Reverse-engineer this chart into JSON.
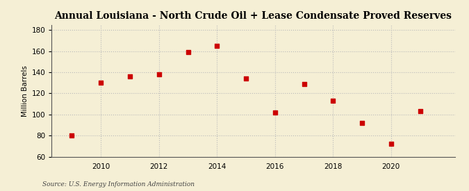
{
  "title": "Annual Louisiana - North Crude Oil + Lease Condensate Proved Reserves",
  "ylabel": "Million Barrels",
  "source": "Source: U.S. Energy Information Administration",
  "years": [
    2009,
    2010,
    2011,
    2012,
    2013,
    2014,
    2015,
    2016,
    2017,
    2018,
    2019,
    2020,
    2021
  ],
  "values": [
    80,
    130,
    136,
    138,
    159,
    165,
    134,
    102,
    129,
    113,
    92,
    72,
    103
  ],
  "xlim": [
    2008.3,
    2022.2
  ],
  "ylim": [
    60,
    185
  ],
  "yticks": [
    60,
    80,
    100,
    120,
    140,
    160,
    180
  ],
  "xticks": [
    2010,
    2012,
    2014,
    2016,
    2018,
    2020
  ],
  "background_color": "#f5efd5",
  "plot_bg_color": "#f5efd5",
  "marker_color": "#cc0000",
  "marker_size": 18,
  "grid_color": "#bbbbbb",
  "title_fontsize": 10,
  "axis_label_fontsize": 7.5,
  "tick_fontsize": 7.5,
  "source_fontsize": 6.5
}
